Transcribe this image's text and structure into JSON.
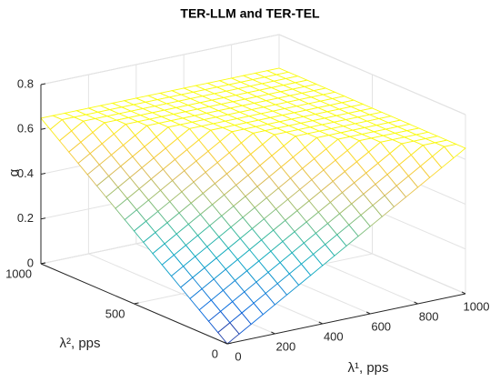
{
  "chart_data": {
    "type": "mesh",
    "title": "TER-LLM and TER-TEL",
    "xlabel": "λ¹, pps",
    "ylabel": "λ², pps",
    "zlabel": "α",
    "xlim": [
      0,
      1000
    ],
    "ylim": [
      0,
      1000
    ],
    "zlim": [
      0,
      0.8
    ],
    "xticks": [
      0,
      200,
      400,
      600,
      800,
      1000
    ],
    "yticks": [
      0,
      500,
      1000
    ],
    "zticks": [
      0,
      0.2,
      0.4,
      0.6,
      0.8
    ],
    "grid": true,
    "colormap": "parula",
    "x": [
      0,
      50,
      100,
      150,
      200,
      250,
      300,
      350,
      400,
      450,
      500,
      550,
      600,
      650,
      700,
      750,
      800,
      850,
      900,
      950,
      1000
    ],
    "y": [
      0,
      50,
      100,
      150,
      200,
      250,
      300,
      350,
      400,
      450,
      500,
      550,
      600,
      650,
      700,
      750,
      800,
      850,
      900,
      950,
      1000
    ],
    "z": [
      [
        0,
        0.0325,
        0.065,
        0.0975,
        0.13,
        0.1625,
        0.195,
        0.2275,
        0.26,
        0.2925,
        0.325,
        0.3575,
        0.39,
        0.4225,
        0.455,
        0.4875,
        0.52,
        0.5525,
        0.585,
        0.6175,
        0.65
      ],
      [
        0.0325,
        0.065,
        0.0975,
        0.13,
        0.1625,
        0.195,
        0.2275,
        0.26,
        0.2925,
        0.325,
        0.3575,
        0.39,
        0.4225,
        0.455,
        0.4875,
        0.52,
        0.5525,
        0.585,
        0.6175,
        0.65,
        0.65
      ],
      [
        0.065,
        0.0975,
        0.13,
        0.1625,
        0.195,
        0.2275,
        0.26,
        0.2925,
        0.325,
        0.3575,
        0.39,
        0.4225,
        0.455,
        0.4875,
        0.52,
        0.5525,
        0.585,
        0.6175,
        0.65,
        0.65,
        0.65
      ],
      [
        0.0975,
        0.13,
        0.1625,
        0.195,
        0.2275,
        0.26,
        0.2925,
        0.325,
        0.3575,
        0.39,
        0.4225,
        0.455,
        0.4875,
        0.52,
        0.5525,
        0.585,
        0.6175,
        0.65,
        0.65,
        0.65,
        0.65
      ],
      [
        0.13,
        0.1625,
        0.195,
        0.2275,
        0.26,
        0.2925,
        0.325,
        0.3575,
        0.39,
        0.4225,
        0.455,
        0.4875,
        0.52,
        0.5525,
        0.585,
        0.6175,
        0.65,
        0.65,
        0.65,
        0.65,
        0.65
      ],
      [
        0.1625,
        0.195,
        0.2275,
        0.26,
        0.2925,
        0.325,
        0.3575,
        0.39,
        0.4225,
        0.455,
        0.4875,
        0.52,
        0.5525,
        0.585,
        0.6175,
        0.65,
        0.65,
        0.65,
        0.65,
        0.65,
        0.65
      ],
      [
        0.195,
        0.2275,
        0.26,
        0.2925,
        0.325,
        0.3575,
        0.39,
        0.4225,
        0.455,
        0.4875,
        0.52,
        0.5525,
        0.585,
        0.6175,
        0.65,
        0.65,
        0.65,
        0.65,
        0.65,
        0.65,
        0.65
      ],
      [
        0.2275,
        0.26,
        0.2925,
        0.325,
        0.3575,
        0.39,
        0.4225,
        0.455,
        0.4875,
        0.52,
        0.5525,
        0.585,
        0.6175,
        0.65,
        0.65,
        0.65,
        0.65,
        0.65,
        0.65,
        0.65,
        0.65
      ],
      [
        0.26,
        0.2925,
        0.325,
        0.3575,
        0.39,
        0.4225,
        0.455,
        0.4875,
        0.52,
        0.5525,
        0.585,
        0.6175,
        0.65,
        0.65,
        0.65,
        0.65,
        0.65,
        0.65,
        0.65,
        0.65,
        0.65
      ],
      [
        0.2925,
        0.325,
        0.3575,
        0.39,
        0.4225,
        0.455,
        0.4875,
        0.52,
        0.5525,
        0.585,
        0.6175,
        0.65,
        0.65,
        0.65,
        0.65,
        0.65,
        0.65,
        0.65,
        0.65,
        0.65,
        0.65
      ],
      [
        0.325,
        0.3575,
        0.39,
        0.4225,
        0.455,
        0.4875,
        0.52,
        0.5525,
        0.585,
        0.6175,
        0.65,
        0.65,
        0.65,
        0.65,
        0.65,
        0.65,
        0.65,
        0.65,
        0.65,
        0.65,
        0.65
      ],
      [
        0.3575,
        0.39,
        0.4225,
        0.455,
        0.4875,
        0.52,
        0.5525,
        0.585,
        0.6175,
        0.65,
        0.65,
        0.65,
        0.65,
        0.65,
        0.65,
        0.65,
        0.65,
        0.65,
        0.65,
        0.65,
        0.65
      ],
      [
        0.39,
        0.4225,
        0.455,
        0.4875,
        0.52,
        0.5525,
        0.585,
        0.6175,
        0.65,
        0.65,
        0.65,
        0.65,
        0.65,
        0.65,
        0.65,
        0.65,
        0.65,
        0.65,
        0.65,
        0.65,
        0.65
      ],
      [
        0.4225,
        0.455,
        0.4875,
        0.52,
        0.5525,
        0.585,
        0.6175,
        0.65,
        0.65,
        0.65,
        0.65,
        0.65,
        0.65,
        0.65,
        0.65,
        0.65,
        0.65,
        0.65,
        0.65,
        0.65,
        0.65
      ],
      [
        0.455,
        0.4875,
        0.52,
        0.5525,
        0.585,
        0.6175,
        0.65,
        0.65,
        0.65,
        0.65,
        0.65,
        0.65,
        0.65,
        0.65,
        0.65,
        0.65,
        0.65,
        0.65,
        0.65,
        0.65,
        0.65
      ],
      [
        0.4875,
        0.52,
        0.5525,
        0.585,
        0.6175,
        0.65,
        0.65,
        0.65,
        0.65,
        0.65,
        0.65,
        0.65,
        0.65,
        0.65,
        0.65,
        0.65,
        0.65,
        0.65,
        0.65,
        0.65,
        0.65
      ],
      [
        0.52,
        0.5525,
        0.585,
        0.6175,
        0.65,
        0.65,
        0.65,
        0.65,
        0.65,
        0.65,
        0.65,
        0.65,
        0.65,
        0.65,
        0.65,
        0.65,
        0.65,
        0.65,
        0.65,
        0.65,
        0.65
      ],
      [
        0.5525,
        0.585,
        0.6175,
        0.65,
        0.65,
        0.65,
        0.65,
        0.65,
        0.65,
        0.65,
        0.65,
        0.65,
        0.65,
        0.65,
        0.65,
        0.65,
        0.65,
        0.65,
        0.65,
        0.65,
        0.65
      ],
      [
        0.585,
        0.6175,
        0.65,
        0.65,
        0.65,
        0.65,
        0.65,
        0.65,
        0.65,
        0.65,
        0.65,
        0.65,
        0.65,
        0.65,
        0.65,
        0.65,
        0.65,
        0.65,
        0.65,
        0.65,
        0.65
      ],
      [
        0.6175,
        0.65,
        0.65,
        0.65,
        0.65,
        0.65,
        0.65,
        0.65,
        0.65,
        0.65,
        0.65,
        0.65,
        0.65,
        0.65,
        0.65,
        0.65,
        0.65,
        0.65,
        0.65,
        0.65,
        0.65
      ],
      [
        0.65,
        0.65,
        0.65,
        0.65,
        0.65,
        0.65,
        0.65,
        0.65,
        0.65,
        0.65,
        0.65,
        0.65,
        0.65,
        0.65,
        0.65,
        0.65,
        0.65,
        0.65,
        0.65,
        0.65,
        0.65
      ]
    ]
  }
}
